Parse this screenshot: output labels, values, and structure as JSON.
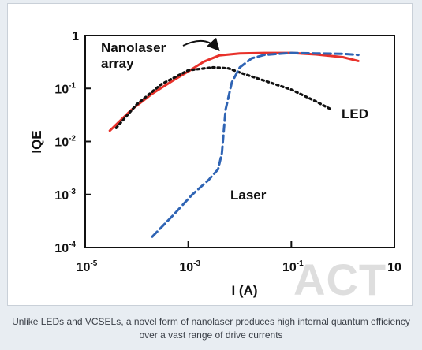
{
  "chart_data": {
    "type": "line",
    "title": "",
    "xlabel": "I (A)",
    "ylabel": "IQE",
    "xscale": "log",
    "yscale": "log",
    "xlim": [
      1e-05,
      10
    ],
    "ylim": [
      0.0001,
      1
    ],
    "x_ticks": [
      {
        "value": 1e-05,
        "base": "10",
        "exp": "-5"
      },
      {
        "value": 0.001,
        "base": "10",
        "exp": "-3"
      },
      {
        "value": 0.1,
        "base": "10",
        "exp": "-1"
      },
      {
        "value": 10,
        "base": "10",
        "exp": ""
      }
    ],
    "y_ticks": [
      {
        "value": 1,
        "base": "1",
        "exp": ""
      },
      {
        "value": 0.1,
        "base": "10",
        "exp": "-1"
      },
      {
        "value": 0.01,
        "base": "10",
        "exp": "-2"
      },
      {
        "value": 0.001,
        "base": "10",
        "exp": "-3"
      },
      {
        "value": 0.0001,
        "base": "10",
        "exp": "-4"
      }
    ],
    "grid": false,
    "series": [
      {
        "name": "Nanolaser array",
        "color": "#e8312a",
        "style": "solid",
        "points": [
          [
            3e-05,
            0.016
          ],
          [
            8e-05,
            0.04
          ],
          [
            0.0002,
            0.08
          ],
          [
            0.0005,
            0.14
          ],
          [
            0.001,
            0.21
          ],
          [
            0.002,
            0.32
          ],
          [
            0.004,
            0.42
          ],
          [
            0.01,
            0.46
          ],
          [
            0.03,
            0.47
          ],
          [
            0.1,
            0.47
          ],
          [
            0.3,
            0.44
          ],
          [
            1,
            0.39
          ],
          [
            2,
            0.33
          ]
        ]
      },
      {
        "name": "LED",
        "color": "#111111",
        "style": "dotted",
        "points": [
          [
            4e-05,
            0.018
          ],
          [
            0.0001,
            0.05
          ],
          [
            0.0003,
            0.12
          ],
          [
            0.001,
            0.22
          ],
          [
            0.003,
            0.25
          ],
          [
            0.006,
            0.24
          ],
          [
            0.01,
            0.2
          ],
          [
            0.03,
            0.14
          ],
          [
            0.1,
            0.095
          ],
          [
            0.3,
            0.057
          ],
          [
            0.6,
            0.04
          ]
        ]
      },
      {
        "name": "Laser",
        "color": "#2f64b4",
        "style": "dashed",
        "points": [
          [
            0.0002,
            0.00016
          ],
          [
            0.0005,
            0.0004
          ],
          [
            0.0012,
            0.001
          ],
          [
            0.0025,
            0.0019
          ],
          [
            0.0038,
            0.003
          ],
          [
            0.0045,
            0.006
          ],
          [
            0.0053,
            0.04
          ],
          [
            0.007,
            0.13
          ],
          [
            0.01,
            0.25
          ],
          [
            0.017,
            0.37
          ],
          [
            0.03,
            0.43
          ],
          [
            0.1,
            0.47
          ],
          [
            0.3,
            0.46
          ],
          [
            1,
            0.45
          ],
          [
            2,
            0.43
          ]
        ]
      }
    ],
    "annotations": [
      {
        "text_lines": [
          "Nanolaser",
          "array"
        ],
        "target": "Nanolaser array"
      },
      {
        "text_lines": [
          "LED"
        ],
        "target": "LED"
      },
      {
        "text_lines": [
          "Laser"
        ],
        "target": "Laser"
      }
    ]
  },
  "caption": "Unlike LEDs and VCSELs, a novel form of nanolaser produces high internal quantum efficiency over a vast range of drive currents",
  "watermark": "ACT"
}
